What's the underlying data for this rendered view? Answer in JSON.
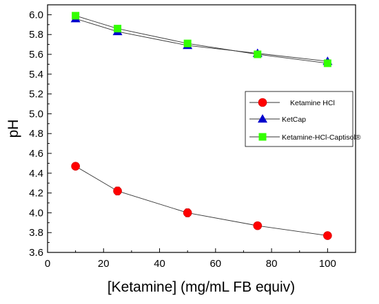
{
  "chart_data": {
    "type": "line",
    "xlabel": "[Ketamine] (mg/mL FB equiv)",
    "ylabel": "pH",
    "xlim": [
      0,
      110
    ],
    "ylim": [
      3.6,
      6.1
    ],
    "x_ticks": [
      "0",
      "20",
      "40",
      "60",
      "80",
      "100"
    ],
    "y_ticks": [
      "3.6",
      "3.8",
      "4.0",
      "4.2",
      "4.4",
      "4.6",
      "4.8",
      "5.0",
      "5.2",
      "5.4",
      "5.6",
      "5.8",
      "6.0"
    ],
    "x": [
      10,
      25,
      50,
      75,
      100
    ],
    "series": [
      {
        "name": "Ketamine HCl",
        "values": [
          4.47,
          4.22,
          4.0,
          3.87,
          3.77
        ],
        "color": "#ff0000",
        "marker": "circle",
        "error": [
          0.03,
          0.04,
          0.04,
          0.03,
          0.03
        ]
      },
      {
        "name": "KetCap",
        "values": [
          5.96,
          5.83,
          5.69,
          5.61,
          5.53
        ],
        "color": "#0000cc",
        "marker": "triangle"
      },
      {
        "name": "Ketamine-HCl-Captisol®",
        "values": [
          5.99,
          5.86,
          5.71,
          5.6,
          5.51
        ],
        "color": "#33ff00",
        "marker": "square"
      }
    ],
    "legend_position": "right",
    "grid": false
  }
}
